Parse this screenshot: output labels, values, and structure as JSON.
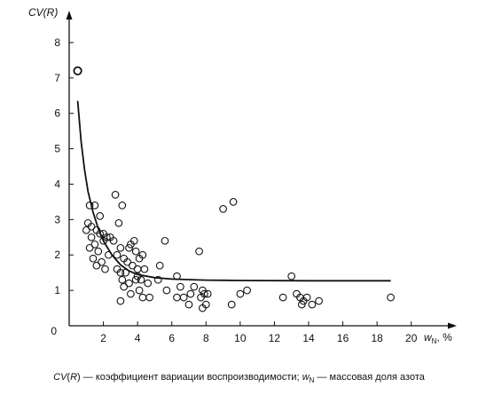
{
  "chart_data": {
    "type": "scatter",
    "ylabel": "CV(R)",
    "xlabel": "w",
    "xlabel_sub": "N",
    "xlabel_unit": ", %",
    "xlim": [
      0,
      21
    ],
    "ylim": [
      0,
      8.5
    ],
    "x_ticks": [
      "2",
      "4",
      "6",
      "8",
      "10",
      "12",
      "14",
      "16",
      "18",
      "20"
    ],
    "y_ticks": [
      "0",
      "1",
      "2",
      "3",
      "4",
      "5",
      "6",
      "7",
      "8"
    ],
    "grid": false,
    "points": [
      [
        0.5,
        7.2
      ],
      [
        1.2,
        3.4
      ],
      [
        1.5,
        3.4
      ],
      [
        1.1,
        2.9
      ],
      [
        1.3,
        2.8
      ],
      [
        1.6,
        2.7
      ],
      [
        1.0,
        2.7
      ],
      [
        1.3,
        2.5
      ],
      [
        1.8,
        2.6
      ],
      [
        2.0,
        2.6
      ],
      [
        2.2,
        2.5
      ],
      [
        2.4,
        2.5
      ],
      [
        1.5,
        2.3
      ],
      [
        1.2,
        2.2
      ],
      [
        1.7,
        2.1
      ],
      [
        2.0,
        2.4
      ],
      [
        2.3,
        2.0
      ],
      [
        2.6,
        2.4
      ],
      [
        1.4,
        1.9
      ],
      [
        1.6,
        1.7
      ],
      [
        1.9,
        1.8
      ],
      [
        2.1,
        1.6
      ],
      [
        1.8,
        3.1
      ],
      [
        2.7,
        3.7
      ],
      [
        3.1,
        3.4
      ],
      [
        2.9,
        2.9
      ],
      [
        3.0,
        2.2
      ],
      [
        2.8,
        2.0
      ],
      [
        3.2,
        1.9
      ],
      [
        3.4,
        1.8
      ],
      [
        2.8,
        1.6
      ],
      [
        3.0,
        1.5
      ],
      [
        3.3,
        1.5
      ],
      [
        3.6,
        2.3
      ],
      [
        3.8,
        2.4
      ],
      [
        3.5,
        2.2
      ],
      [
        3.9,
        2.1
      ],
      [
        4.1,
        1.9
      ],
      [
        4.3,
        2.0
      ],
      [
        3.7,
        1.7
      ],
      [
        4.0,
        1.6
      ],
      [
        4.4,
        1.6
      ],
      [
        3.1,
        1.3
      ],
      [
        3.5,
        1.2
      ],
      [
        3.9,
        1.3
      ],
      [
        4.2,
        1.3
      ],
      [
        4.6,
        1.2
      ],
      [
        3.2,
        1.1
      ],
      [
        3.6,
        0.9
      ],
      [
        4.1,
        1.0
      ],
      [
        4.3,
        0.8
      ],
      [
        4.7,
        0.8
      ],
      [
        3.0,
        0.7
      ],
      [
        4.0,
        1.4
      ],
      [
        5.3,
        1.7
      ],
      [
        5.6,
        2.4
      ],
      [
        5.2,
        1.3
      ],
      [
        5.7,
        1.0
      ],
      [
        6.3,
        1.4
      ],
      [
        6.5,
        1.1
      ],
      [
        6.7,
        0.8
      ],
      [
        6.3,
        0.8
      ],
      [
        7.1,
        0.9
      ],
      [
        7.3,
        1.1
      ],
      [
        7.6,
        2.1
      ],
      [
        7.0,
        0.6
      ],
      [
        7.8,
        1.0
      ],
      [
        7.9,
        0.9
      ],
      [
        7.7,
        0.8
      ],
      [
        8.0,
        0.6
      ],
      [
        7.8,
        0.5
      ],
      [
        8.1,
        0.9
      ],
      [
        9.0,
        3.3
      ],
      [
        9.6,
        3.5
      ],
      [
        9.5,
        0.6
      ],
      [
        10.0,
        0.9
      ],
      [
        10.4,
        1.0
      ],
      [
        12.5,
        0.8
      ],
      [
        13.0,
        1.4
      ],
      [
        13.3,
        0.9
      ],
      [
        13.5,
        0.8
      ],
      [
        13.7,
        0.7
      ],
      [
        13.9,
        0.8
      ],
      [
        14.2,
        0.6
      ],
      [
        14.6,
        0.7
      ],
      [
        13.6,
        0.6
      ],
      [
        18.8,
        0.8
      ]
    ],
    "fit_curve": [
      [
        0.5,
        6.35
      ],
      [
        0.7,
        5.2
      ],
      [
        0.9,
        4.4
      ],
      [
        1.1,
        3.8
      ],
      [
        1.4,
        3.2
      ],
      [
        1.7,
        2.75
      ],
      [
        2.0,
        2.4
      ],
      [
        2.5,
        2.0
      ],
      [
        3.0,
        1.72
      ],
      [
        3.5,
        1.55
      ],
      [
        4.0,
        1.45
      ],
      [
        5.0,
        1.36
      ],
      [
        6.0,
        1.32
      ],
      [
        8.0,
        1.29
      ],
      [
        10.0,
        1.28
      ],
      [
        14.0,
        1.27
      ],
      [
        18.8,
        1.27
      ]
    ]
  },
  "caption": {
    "cv_main": "CV",
    "cv_paren": "(",
    "cv_r": "R",
    "cv_close": ")",
    "text1": " — коэффициент вариации воспроизводимости; ",
    "w": "w",
    "w_sub": "N",
    "text2": " — массовая доля азота"
  }
}
